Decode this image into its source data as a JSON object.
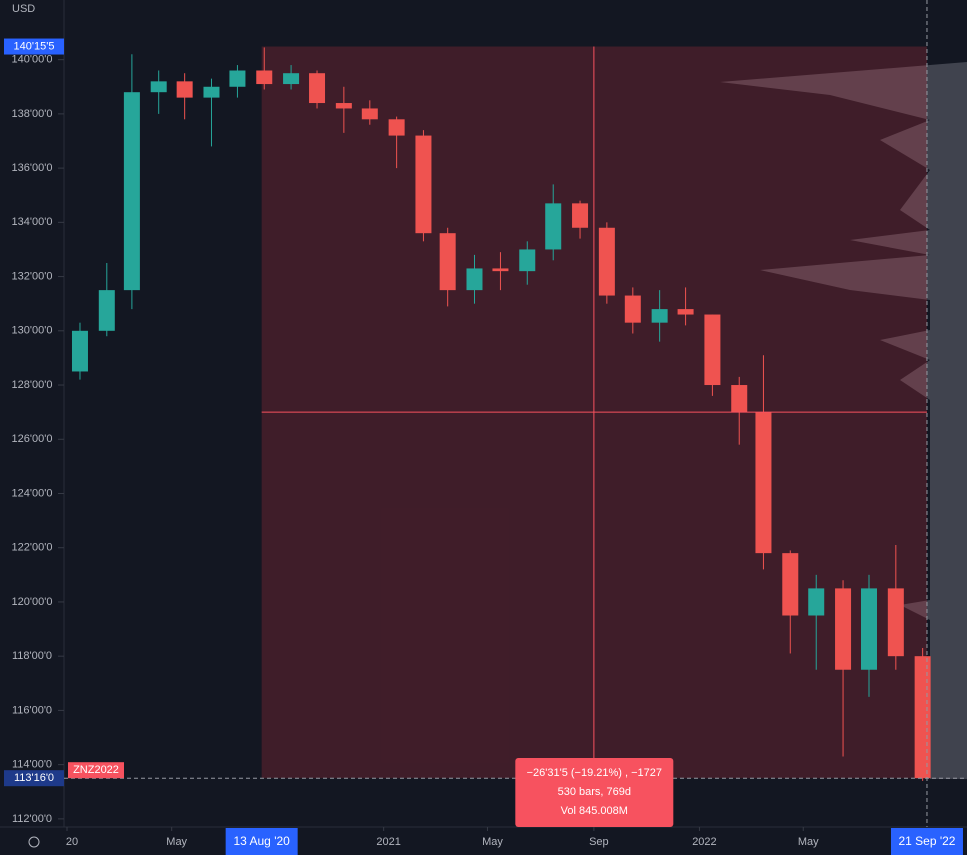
{
  "chart_data": {
    "type": "candlestick",
    "currency": "USD",
    "symbol": "ZNZ2022",
    "x": [
      "2020-01",
      "2020-02",
      "2020-03",
      "2020-04",
      "2020-05",
      "2020-06",
      "2020-07",
      "2020-08",
      "2020-09",
      "2020-10",
      "2020-11",
      "2020-12",
      "2021-01",
      "2021-02",
      "2021-03",
      "2021-04",
      "2021-05",
      "2021-06",
      "2021-07",
      "2021-08",
      "2021-09",
      "2021-10",
      "2021-11",
      "2021-12",
      "2022-01",
      "2022-02",
      "2022-03",
      "2022-04",
      "2022-05",
      "2022-06",
      "2022-07",
      "2022-08",
      "2022-09"
    ],
    "open": [
      128.5,
      130,
      131.5,
      138.8,
      139.2,
      138.6,
      139,
      139.6,
      139.1,
      139.5,
      138.4,
      138.2,
      137.8,
      137.2,
      133.6,
      131.5,
      132.3,
      132.2,
      133,
      134.7,
      133.8,
      131.3,
      130.3,
      130.8,
      130.6,
      128,
      127,
      121.8,
      119.5,
      120.5,
      117.5,
      120.5,
      118
    ],
    "high": [
      130.3,
      132.5,
      140.2,
      139.6,
      139.5,
      139.3,
      139.8,
      140.45,
      139.8,
      139.6,
      139,
      138.5,
      137.9,
      137.4,
      133.8,
      132.8,
      132.9,
      133.3,
      135.4,
      134.8,
      134,
      131.6,
      131.5,
      131.6,
      130.6,
      128.3,
      129.1,
      121.9,
      121,
      120.8,
      121,
      122.1,
      118.3
    ],
    "low": [
      128.2,
      129.8,
      130.8,
      138,
      137.8,
      136.8,
      138.6,
      138.9,
      138.9,
      138.2,
      137.3,
      137.6,
      136,
      133.3,
      130.9,
      131,
      131.5,
      131.7,
      132.6,
      133.4,
      131,
      129.9,
      129.6,
      130.2,
      127.6,
      125.8,
      121.2,
      118.1,
      117.5,
      114.3,
      116.5,
      117.5,
      113.4
    ],
    "close": [
      130,
      131.5,
      138.8,
      139.2,
      138.6,
      139,
      139.6,
      139.1,
      139.5,
      138.4,
      138.2,
      137.8,
      137.2,
      133.6,
      131.5,
      132.3,
      132.2,
      133,
      134.7,
      133.8,
      131.3,
      130.3,
      130.8,
      130.6,
      128,
      127,
      121.8,
      119.5,
      120.5,
      117.5,
      120.5,
      118,
      113.5
    ],
    "up_color": "#26a69a",
    "down_color": "#ef5350",
    "ylim": [
      111.7,
      142.2
    ],
    "yticks": [
      {
        "value": 112,
        "label": "112'00'0"
      },
      {
        "value": 114,
        "label": "114'00'0"
      },
      {
        "value": 116,
        "label": "116'00'0"
      },
      {
        "value": 118,
        "label": "118'00'0"
      },
      {
        "value": 120,
        "label": "120'00'0"
      },
      {
        "value": 122,
        "label": "122'00'0"
      },
      {
        "value": 124,
        "label": "124'00'0"
      },
      {
        "value": 126,
        "label": "126'00'0"
      },
      {
        "value": 128,
        "label": "128'00'0"
      },
      {
        "value": 130,
        "label": "130'00'0"
      },
      {
        "value": 132,
        "label": "132'00'0"
      },
      {
        "value": 134,
        "label": "134'00'0"
      },
      {
        "value": 136,
        "label": "136'00'0"
      },
      {
        "value": 138,
        "label": "138'00'0"
      },
      {
        "value": 140,
        "label": "140'00'0"
      }
    ],
    "xticks": [
      {
        "value": "2020-01-01",
        "label": "20"
      },
      {
        "value": "2020-05-01",
        "label": "May"
      },
      {
        "value": "2021-01-01",
        "label": "2021"
      },
      {
        "value": "2021-05-01",
        "label": "May"
      },
      {
        "value": "2021-09-01",
        "label": "Sep"
      },
      {
        "value": "2022-01-01",
        "label": "2022"
      },
      {
        "value": "2022-05-01",
        "label": "May"
      }
    ],
    "measure": {
      "start": {
        "value": "2020-08-13",
        "label": "13 Aug '20"
      },
      "end": {
        "value": "2022-09-21",
        "label": "21 Sep '22"
      },
      "high": {
        "value": 140.484,
        "label": "140'15'5"
      },
      "low": {
        "value": 113.5,
        "label": "113'16'0"
      },
      "stats": [
        "−26'31'5 (−19.21%) , −1727",
        "530 bars, 769d",
        "Vol 845.008M"
      ]
    },
    "crosshair": {
      "x": "2021-09-01",
      "y": 127
    }
  }
}
